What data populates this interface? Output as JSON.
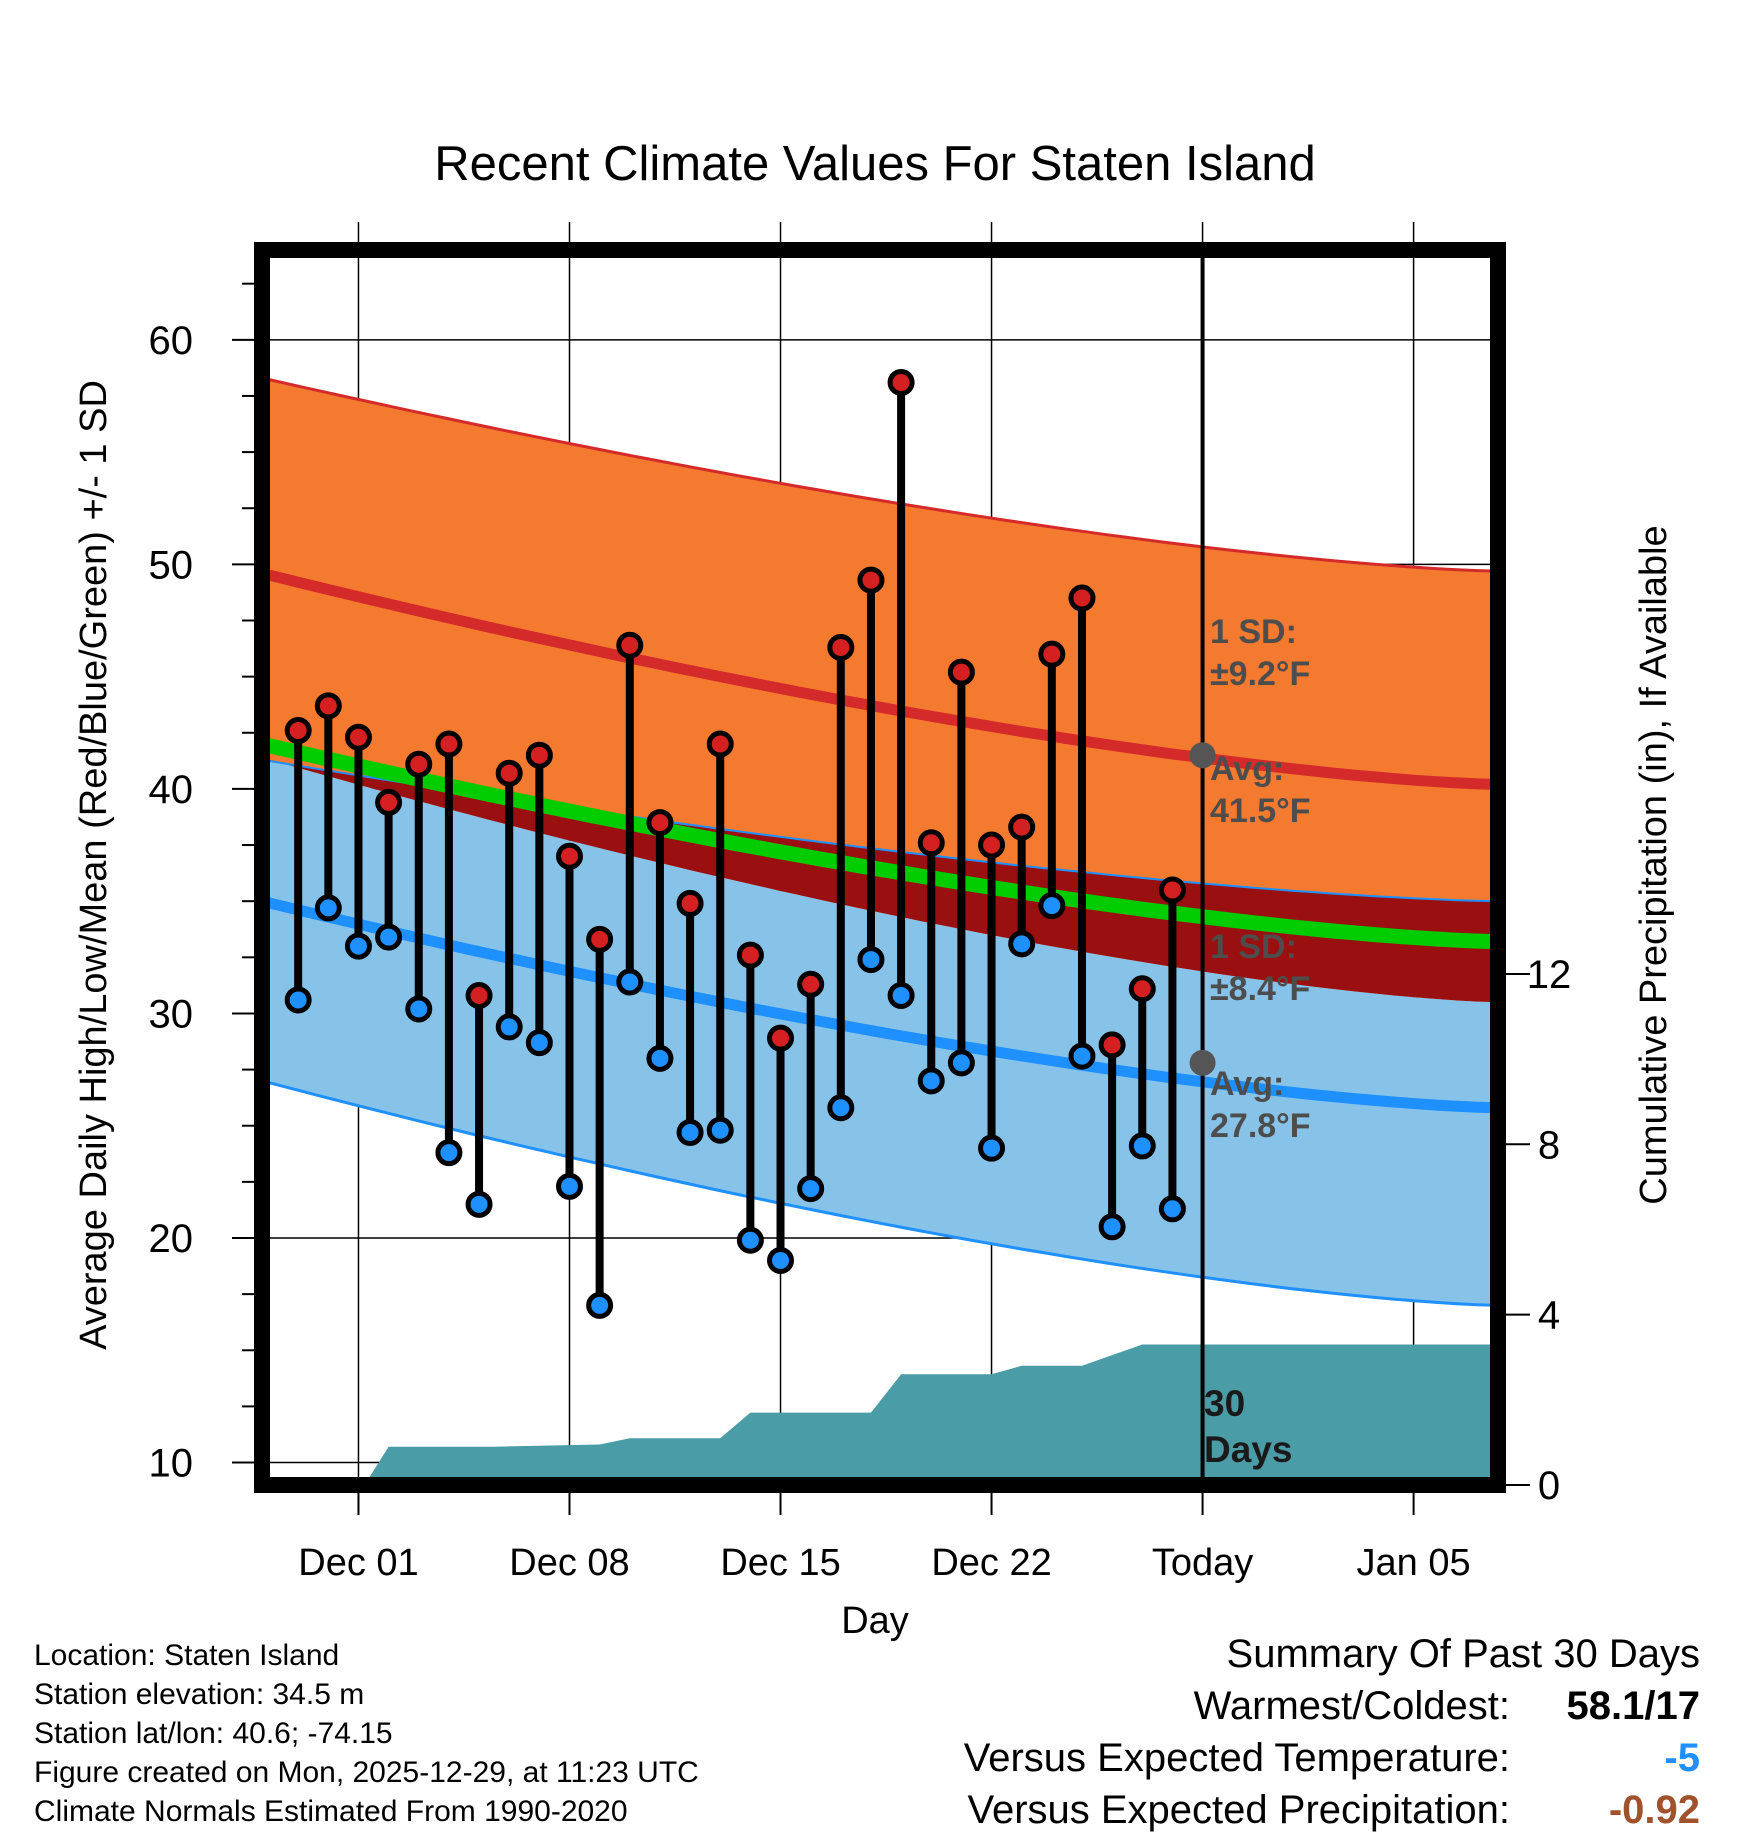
{
  "chart_data": {
    "type": "line",
    "title": "Recent Climate Values For Staten Island",
    "xlabel": "Day",
    "ylabel": "Average Daily High/Low/Mean (Red/Blue/Green) +/- 1 SD",
    "ylabel_right": "Cumulative Precipitation (in), If Available",
    "ylim": [
      9,
      64
    ],
    "ylim_right": [
      0,
      29
    ],
    "xlim": [
      -3.2,
      37.8
    ],
    "x_ticks": [
      {
        "x": 0,
        "label": "Dec 01"
      },
      {
        "x": 7,
        "label": "Dec 08"
      },
      {
        "x": 14,
        "label": "Dec 15"
      },
      {
        "x": 21,
        "label": "Dec 22"
      },
      {
        "x": 28,
        "label": "Today"
      },
      {
        "x": 35,
        "label": "Jan 05"
      }
    ],
    "y_ticks": [
      10,
      20,
      30,
      40,
      50,
      60
    ],
    "y_ticks_right": [
      0,
      4,
      8,
      12
    ],
    "days": [
      -2,
      -1,
      0,
      1,
      2,
      3,
      4,
      5,
      6,
      7,
      8,
      9,
      10,
      11,
      12,
      13,
      14,
      15,
      16,
      17,
      18,
      19,
      20,
      21,
      22,
      23,
      24,
      25,
      26,
      27
    ],
    "highs": [
      42.6,
      43.7,
      42.3,
      39.4,
      41.1,
      42.0,
      30.8,
      40.7,
      41.5,
      37.0,
      33.3,
      46.4,
      38.5,
      34.9,
      42.0,
      32.6,
      28.9,
      31.3,
      46.3,
      49.3,
      58.1,
      37.6,
      45.2,
      37.5,
      38.3,
      46.0,
      48.5,
      28.6,
      31.1,
      35.5
    ],
    "lows": [
      30.6,
      34.7,
      33.0,
      33.4,
      30.2,
      23.8,
      21.5,
      29.4,
      28.7,
      22.3,
      17.0,
      31.4,
      28.0,
      24.7,
      24.8,
      19.9,
      19.0,
      22.2,
      25.8,
      32.4,
      30.8,
      27.0,
      27.8,
      24.0,
      33.1,
      34.8,
      28.1,
      20.5,
      24.1,
      21.3
    ],
    "normal_high_avg": [
      49.6,
      40.2
    ],
    "normal_high_sd_upper": [
      58.3,
      49.7
    ],
    "normal_high_sd_lower": [
      41.3,
      35.0
    ],
    "normal_mean_avg": [
      42.0,
      33.2
    ],
    "normal_low_avg": [
      35.0,
      25.8
    ],
    "normal_low_sd_upper": [
      41.4,
      30.5
    ],
    "normal_low_sd_lower": [
      27.0,
      17.0
    ],
    "precip_x": [
      -3.2,
      0.2,
      1.0,
      4.5,
      8.0,
      9.0,
      12.0,
      13.0,
      17.0,
      18.0,
      21.0,
      22.0,
      24.0,
      26.0,
      27.0,
      37.8
    ],
    "precip_cum": [
      0,
      0,
      0.9,
      0.9,
      0.95,
      1.1,
      1.1,
      1.7,
      1.7,
      2.6,
      2.6,
      2.8,
      2.8,
      3.3,
      3.3,
      3.3
    ],
    "annotations": {
      "high_sd_label": "1 SD:",
      "high_sd_value": "±9.2°F",
      "high_avg_label": "Avg:",
      "high_avg_value": "41.5°F",
      "low_sd_label": "1 SD:",
      "low_sd_value": "±8.4°F",
      "low_avg_label": "Avg:",
      "low_avg_value": "27.8°F",
      "period_number": "30",
      "period_unit": "Days"
    },
    "today_high_avg": 41.5,
    "today_low_avg": 27.8
  },
  "colors": {
    "high_band": "#f47a30",
    "high_line": "#d42a2a",
    "low_band": "#87c3e8",
    "low_line": "#1e90ff",
    "mean_line": "#00cc00",
    "overlap_band": "#9a1010",
    "precip_fill": "#4a9ca6",
    "annotation_text": "#4d4d4d",
    "high_dot": "#d42020",
    "low_dot": "#1e90ff",
    "temp_diff": "#1e90ff",
    "precip_diff": "#a0522d"
  },
  "footer": {
    "location": "Location: Staten Island",
    "elevation": "Station elevation: 34.5 m",
    "latlon": "Station lat/lon: 40.6; -74.15",
    "created": "Figure created on Mon, 2025-12-29, at 11:23 UTC",
    "normals": "Climate Normals Estimated From 1990-2020"
  },
  "summary": {
    "title": "Summary Of Past 30 Days",
    "warmest_label": "Warmest/Coldest:",
    "warmest_high": "58.1",
    "warmest_sep": "/",
    "warmest_low": "17",
    "temp_label": "Versus Expected Temperature:",
    "temp_value": "-5",
    "precip_label": "Versus Expected Precipitation:",
    "precip_value": "-0.92"
  }
}
